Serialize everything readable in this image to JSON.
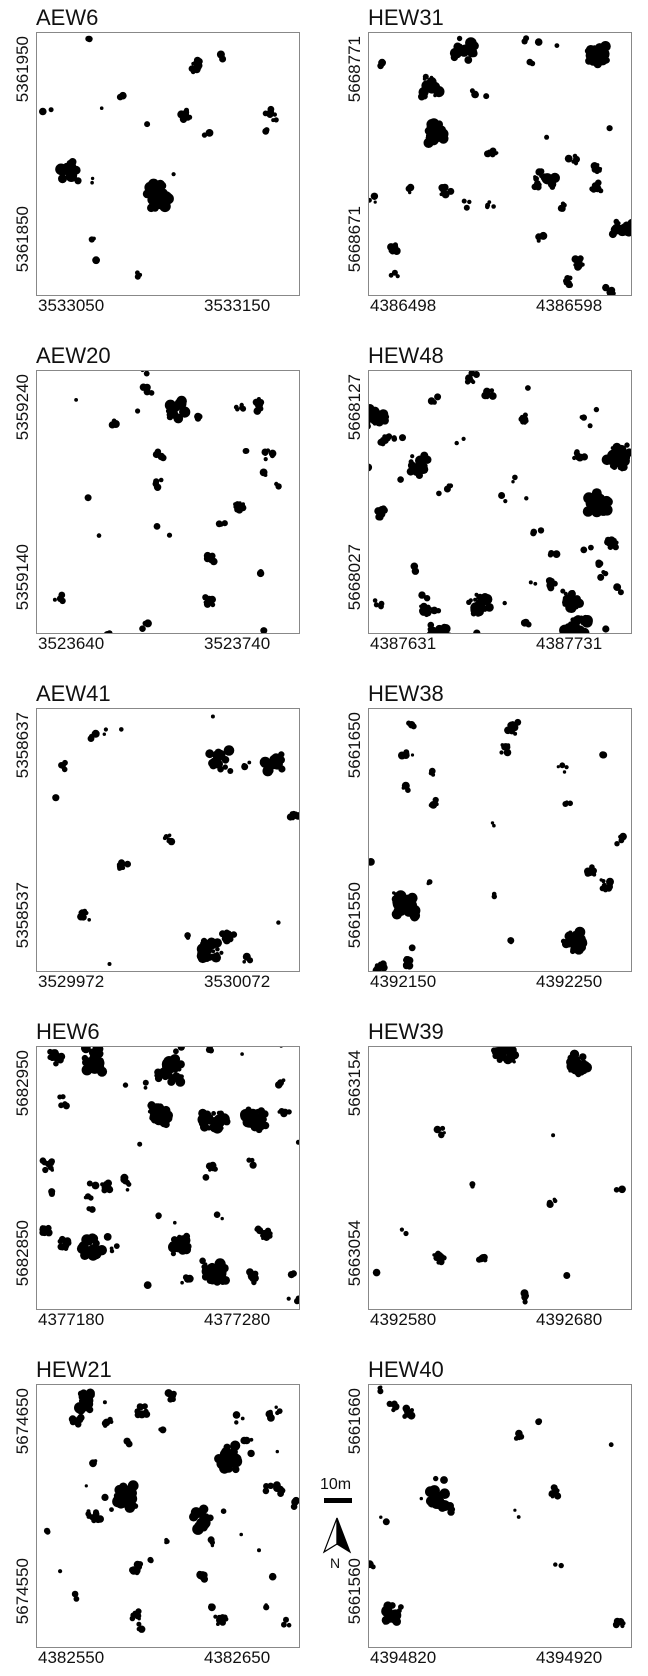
{
  "panels": [
    {
      "title": "AEW6",
      "y_top": "5361950",
      "y_bottom": "5361850",
      "x_left": "3533050",
      "x_right": "3533150",
      "density": 0.05,
      "seed": 11
    },
    {
      "title": "HEW31",
      "y_top": "5668771",
      "y_bottom": "5668671",
      "x_left": "4386498",
      "x_right": "4386598",
      "density": 0.08,
      "seed": 23
    },
    {
      "title": "AEW20",
      "y_top": "5359240",
      "y_bottom": "5359140",
      "x_left": "3523640",
      "x_right": "3523740",
      "density": 0.07,
      "seed": 37
    },
    {
      "title": "HEW48",
      "y_top": "5668127",
      "y_bottom": "5668027",
      "x_left": "4387631",
      "x_right": "4387731",
      "density": 0.12,
      "seed": 41
    },
    {
      "title": "AEW41",
      "y_top": "5358637",
      "y_bottom": "5358537",
      "x_left": "3529972",
      "x_right": "3530072",
      "density": 0.05,
      "seed": 53
    },
    {
      "title": "HEW38",
      "y_top": "5661650",
      "y_bottom": "5661550",
      "x_left": "4392150",
      "x_right": "4392250",
      "density": 0.06,
      "seed": 67
    },
    {
      "title": "HEW6",
      "y_top": "5682950",
      "y_bottom": "5682850",
      "x_left": "4377180",
      "x_right": "4377280",
      "density": 0.13,
      "seed": 71
    },
    {
      "title": "HEW39",
      "y_top": "5663154",
      "y_bottom": "5663054",
      "x_left": "4392580",
      "x_right": "4392680",
      "density": 0.03,
      "seed": 83
    },
    {
      "title": "HEW21",
      "y_top": "5674650",
      "y_bottom": "5674550",
      "x_left": "4382550",
      "x_right": "4382650",
      "density": 0.11,
      "seed": 97
    },
    {
      "title": "HEW40",
      "y_top": "5661660",
      "y_bottom": "5661560",
      "x_left": "4394820",
      "x_right": "4394920",
      "density": 0.04,
      "seed": 101
    }
  ],
  "scale_bar": {
    "label": "10m"
  },
  "north_arrow": {
    "label": "N"
  },
  "colors": {
    "canopy": "#000000",
    "background": "#ffffff",
    "frame": "#888888"
  }
}
